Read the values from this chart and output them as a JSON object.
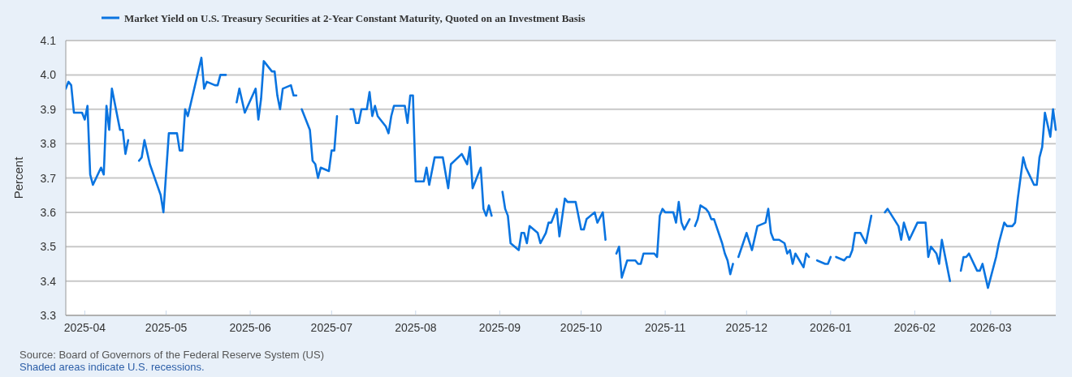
{
  "chart_data": {
    "type": "line",
    "ylabel": "Percent",
    "legend": "top",
    "grid": "y",
    "marker": "none",
    "line_style": "solid",
    "annotations": [
      "Source: Board of Governors of the Federal Reserve System (US)",
      "Shaded areas indicate U.S. recessions."
    ],
    "xlim": [
      "2025-03-25",
      "2026-03-25"
    ],
    "xticks": [
      "2025-04",
      "2025-05",
      "2025-06",
      "2025-07",
      "2025-08",
      "2025-09",
      "2025-10",
      "2025-11",
      "2025-12",
      "2026-01",
      "2026-02",
      "2026-03"
    ],
    "ylim": [
      3.3,
      4.1
    ],
    "yticks": [
      3.3,
      3.4,
      3.5,
      3.6,
      3.7,
      3.8,
      3.9,
      {
        "value": 4,
        "label": "4.0"
      },
      4.1
    ],
    "x": [
      "2025-03-25",
      "2025-03-26",
      "2025-03-27",
      "2025-03-28",
      "2025-03-31",
      "2025-04-01",
      "2025-04-02",
      "2025-04-03",
      "2025-04-04",
      "2025-04-07",
      "2025-04-08",
      "2025-04-09",
      "2025-04-10",
      "2025-04-11",
      "2025-04-14",
      "2025-04-15",
      "2025-04-16",
      "2025-04-17",
      "2025-04-18",
      "2025-04-21",
      "2025-04-22",
      "2025-04-23",
      "2025-04-25",
      "2025-04-29",
      "2025-04-30",
      "2025-05-02",
      "2025-05-05",
      "2025-05-06",
      "2025-05-07",
      "2025-05-08",
      "2025-05-09",
      "2025-05-14",
      "2025-05-15",
      "2025-05-16",
      "2025-05-19",
      "2025-05-20",
      "2025-05-21",
      "2025-05-23",
      "2025-05-26",
      "2025-05-27",
      "2025-05-28",
      "2025-05-30",
      "2025-06-03",
      "2025-06-04",
      "2025-06-05",
      "2025-06-06",
      "2025-06-09",
      "2025-06-10",
      "2025-06-11",
      "2025-06-12",
      "2025-06-13",
      "2025-06-16",
      "2025-06-17",
      "2025-06-18",
      "2025-06-19",
      "2025-06-20",
      "2025-06-23",
      "2025-06-24",
      "2025-06-25",
      "2025-06-26",
      "2025-06-27",
      "2025-06-30",
      "2025-07-01",
      "2025-07-02",
      "2025-07-03",
      "2025-07-04",
      "2025-07-08",
      "2025-07-09",
      "2025-07-10",
      "2025-07-11",
      "2025-07-12",
      "2025-07-14",
      "2025-07-15",
      "2025-07-16",
      "2025-07-17",
      "2025-07-18",
      "2025-07-21",
      "2025-07-22",
      "2025-07-23",
      "2025-07-24",
      "2025-07-28",
      "2025-07-29",
      "2025-07-30",
      "2025-07-31",
      "2025-08-01",
      "2025-08-04",
      "2025-08-05",
      "2025-08-06",
      "2025-08-08",
      "2025-08-11",
      "2025-08-13",
      "2025-08-14",
      "2025-08-18",
      "2025-08-20",
      "2025-08-21",
      "2025-08-22",
      "2025-08-25",
      "2025-08-26",
      "2025-08-27",
      "2025-08-28",
      "2025-08-29",
      "2025-08-31",
      "2025-09-02",
      "2025-09-03",
      "2025-09-04",
      "2025-09-05",
      "2025-09-08",
      "2025-09-09",
      "2025-09-10",
      "2025-09-11",
      "2025-09-12",
      "2025-09-15",
      "2025-09-16",
      "2025-09-18",
      "2025-09-19",
      "2025-09-20",
      "2025-09-22",
      "2025-09-23",
      "2025-09-25",
      "2025-09-26",
      "2025-09-29",
      "2025-10-01",
      "2025-10-02",
      "2025-10-03",
      "2025-10-06",
      "2025-10-07",
      "2025-10-09",
      "2025-10-10",
      "2025-10-12",
      "2025-10-14",
      "2025-10-15",
      "2025-10-16",
      "2025-10-18",
      "2025-10-21",
      "2025-10-22",
      "2025-10-23",
      "2025-10-24",
      "2025-10-28",
      "2025-10-29",
      "2025-10-30",
      "2025-10-31",
      "2025-11-01",
      "2025-11-04",
      "2025-11-05",
      "2025-11-06",
      "2025-11-07",
      "2025-11-08",
      "2025-11-10",
      "2025-11-11",
      "2025-11-12",
      "2025-11-13",
      "2025-11-14",
      "2025-11-16",
      "2025-11-17",
      "2025-11-18",
      "2025-11-19",
      "2025-11-22",
      "2025-11-23",
      "2025-11-24",
      "2025-11-25",
      "2025-11-26",
      "2025-11-27",
      "2025-11-28",
      "2025-12-01",
      "2025-12-03",
      "2025-12-05",
      "2025-12-08",
      "2025-12-09",
      "2025-12-10",
      "2025-12-11",
      "2025-12-13",
      "2025-12-15",
      "2025-12-16",
      "2025-12-17",
      "2025-12-18",
      "2025-12-19",
      "2025-12-22",
      "2025-12-23",
      "2025-12-24",
      "2025-12-25",
      "2025-12-27",
      "2025-12-30",
      "2025-12-31",
      "2026-01-01",
      "2026-01-02",
      "2026-01-03",
      "2026-01-06",
      "2026-01-07",
      "2026-01-08",
      "2026-01-09",
      "2026-01-10",
      "2026-01-12",
      "2026-01-14",
      "2026-01-16",
      "2026-01-18",
      "2026-01-21",
      "2026-01-22",
      "2026-01-26",
      "2026-01-27",
      "2026-01-28",
      "2026-01-30",
      "2026-02-02",
      "2026-02-05",
      "2026-02-06",
      "2026-02-07",
      "2026-02-09",
      "2026-02-10",
      "2026-02-11",
      "2026-02-14",
      "2026-02-16",
      "2026-02-18",
      "2026-02-19",
      "2026-02-20",
      "2026-02-21",
      "2026-02-24",
      "2026-02-25",
      "2026-02-26",
      "2026-02-28",
      "2026-03-03",
      "2026-03-04",
      "2026-03-06",
      "2026-03-07",
      "2026-03-09",
      "2026-03-10",
      "2026-03-11",
      "2026-03-13",
      "2026-03-14",
      "2026-03-17",
      "2026-03-18",
      "2026-03-19",
      "2026-03-20",
      "2026-03-21",
      "2026-03-23",
      "2026-03-24",
      "2026-03-25"
    ],
    "series": [
      {
        "name": "Market Yield on U.S. Treasury Securities at 2-Year Constant Maturity, Quoted on an Investment Basis",
        "color": "#0a74e0",
        "values": [
          3.96,
          3.98,
          3.97,
          3.89,
          3.89,
          3.87,
          3.91,
          3.71,
          3.68,
          3.73,
          3.71,
          3.91,
          3.84,
          3.96,
          3.84,
          3.84,
          3.77,
          3.81,
          null,
          3.75,
          3.76,
          3.81,
          3.74,
          3.65,
          3.6,
          3.83,
          3.83,
          3.78,
          3.78,
          3.9,
          3.88,
          4.05,
          3.96,
          3.98,
          3.97,
          3.97,
          4.0,
          4.0,
          null,
          3.92,
          3.96,
          3.89,
          3.96,
          3.87,
          3.93,
          4.04,
          4.01,
          4.01,
          3.94,
          3.9,
          3.96,
          3.97,
          3.94,
          3.94,
          null,
          3.9,
          3.84,
          3.75,
          3.74,
          3.7,
          3.73,
          3.72,
          3.78,
          3.78,
          3.88,
          null,
          3.9,
          3.9,
          3.86,
          3.86,
          3.9,
          3.9,
          3.95,
          3.88,
          3.91,
          3.88,
          3.85,
          3.83,
          3.88,
          3.91,
          3.91,
          3.86,
          3.94,
          3.94,
          3.69,
          3.69,
          3.73,
          3.68,
          3.76,
          3.76,
          3.67,
          3.74,
          3.77,
          3.74,
          3.79,
          3.67,
          3.73,
          3.61,
          3.59,
          3.62,
          3.59,
          null,
          3.66,
          3.61,
          3.59,
          3.51,
          3.49,
          3.54,
          3.54,
          3.51,
          3.56,
          3.54,
          3.51,
          3.54,
          3.57,
          3.57,
          3.61,
          3.53,
          3.64,
          3.63,
          3.63,
          3.55,
          3.55,
          3.58,
          3.6,
          3.57,
          3.6,
          3.52,
          null,
          3.48,
          3.5,
          3.41,
          3.46,
          3.46,
          3.45,
          3.45,
          3.48,
          3.48,
          3.47,
          3.59,
          3.61,
          3.6,
          3.6,
          3.57,
          3.63,
          3.57,
          3.55,
          3.58,
          null,
          3.56,
          3.58,
          3.62,
          3.61,
          3.6,
          3.58,
          3.58,
          3.51,
          3.48,
          3.46,
          3.42,
          3.45,
          null,
          3.47,
          3.54,
          3.49,
          3.56,
          3.57,
          3.61,
          3.54,
          3.52,
          3.52,
          3.51,
          3.48,
          3.49,
          3.45,
          3.48,
          3.44,
          3.48,
          3.47,
          null,
          3.46,
          3.45,
          3.45,
          3.47,
          null,
          3.47,
          3.46,
          3.47,
          3.47,
          3.49,
          3.54,
          3.54,
          3.51,
          3.59,
          null,
          3.6,
          3.61,
          3.56,
          3.52,
          3.57,
          3.52,
          3.57,
          3.57,
          3.47,
          3.5,
          3.48,
          3.45,
          3.52,
          3.4,
          null,
          3.43,
          3.47,
          3.47,
          3.48,
          3.43,
          3.43,
          3.45,
          3.38,
          3.47,
          3.51,
          3.57,
          3.56,
          3.56,
          3.57,
          3.64,
          3.76,
          3.73,
          3.68,
          3.68,
          3.76,
          3.79,
          3.89,
          3.82,
          3.9,
          3.84
        ]
      }
    ]
  }
}
